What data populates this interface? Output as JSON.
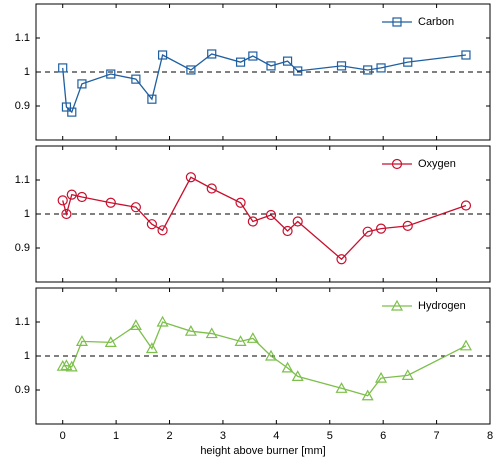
{
  "chart_data": [
    {
      "type": "line",
      "marker": "square",
      "legend": "upper right",
      "x": [
        0,
        0.07,
        0.17,
        0.36,
        0.9,
        1.37,
        1.67,
        1.87,
        2.4,
        2.79,
        3.33,
        3.56,
        3.9,
        4.21,
        4.4,
        5.22,
        5.71,
        5.96,
        6.46,
        7.55
      ],
      "series": [
        {
          "name": "Carbon",
          "color": "#1f5fa0",
          "values": [
            1.012,
            0.897,
            0.882,
            0.965,
            0.994,
            0.979,
            0.92,
            1.05,
            1.006,
            1.053,
            1.029,
            1.047,
            1.018,
            1.032,
            1.003,
            1.018,
            1.006,
            1.012,
            1.029,
            1.05
          ]
        }
      ],
      "hline": 1,
      "xlim": [
        -0.5,
        8
      ],
      "ylim": [
        0.8,
        1.2
      ],
      "xticks": [
        0,
        1,
        2,
        3,
        4,
        5,
        6,
        7,
        8
      ],
      "yticks": [
        0.9,
        1,
        1.1
      ]
    },
    {
      "type": "line",
      "marker": "circle",
      "legend": "upper right",
      "x": [
        0,
        0.07,
        0.17,
        0.36,
        0.9,
        1.37,
        1.67,
        1.87,
        2.4,
        2.79,
        3.33,
        3.56,
        3.9,
        4.21,
        4.4,
        5.22,
        5.71,
        5.96,
        6.46,
        7.55
      ],
      "series": [
        {
          "name": "Oxygen",
          "color": "#c8102e",
          "values": [
            1.04,
            1.0,
            1.057,
            1.05,
            1.033,
            1.02,
            0.97,
            0.952,
            1.108,
            1.075,
            1.033,
            0.978,
            0.997,
            0.95,
            0.978,
            0.867,
            0.948,
            0.957,
            0.965,
            1.025
          ]
        }
      ],
      "hline": 1,
      "xlim": [
        -0.5,
        8
      ],
      "ylim": [
        0.8,
        1.2
      ],
      "xticks": [
        0,
        1,
        2,
        3,
        4,
        5,
        6,
        7,
        8
      ],
      "yticks": [
        0.9,
        1,
        1.1
      ]
    },
    {
      "type": "line",
      "marker": "triangle",
      "legend": "upper right",
      "xlabel": "height above burner [mm]",
      "x": [
        0,
        0.07,
        0.17,
        0.36,
        0.9,
        1.37,
        1.67,
        1.87,
        2.4,
        2.79,
        3.33,
        3.56,
        3.9,
        4.21,
        4.4,
        5.22,
        5.71,
        5.96,
        6.46,
        7.55
      ],
      "series": [
        {
          "name": "Hydrogen",
          "color": "#7cbf4a",
          "values": [
            0.97,
            0.972,
            0.968,
            1.043,
            1.04,
            1.09,
            1.022,
            1.1,
            1.073,
            1.066,
            1.043,
            1.052,
            1.0,
            0.965,
            0.94,
            0.905,
            0.883,
            0.935,
            0.943,
            1.03
          ]
        }
      ],
      "hline": 1,
      "xlim": [
        -0.5,
        8
      ],
      "ylim": [
        0.8,
        1.2
      ],
      "xticks": [
        0,
        1,
        2,
        3,
        4,
        5,
        6,
        7,
        8
      ],
      "yticks": [
        0.9,
        1,
        1.1
      ]
    }
  ]
}
